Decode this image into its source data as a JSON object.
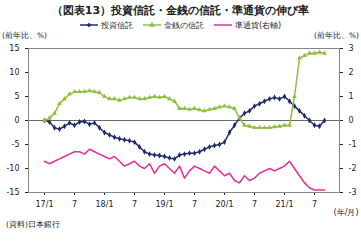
{
  "chart_data": {
    "type": "line",
    "title": "（図表13）投資信託・金銭の信託・準通貨の伸び率",
    "y_label": "(前年比、%)",
    "y2_label": "(前年比、%)",
    "x_label": "(年/月)",
    "source": "(資料)日本銀行",
    "categories": [
      "17/1",
      null,
      null,
      null,
      null,
      null,
      "7",
      null,
      null,
      null,
      null,
      null,
      "18/1",
      null,
      null,
      null,
      null,
      null,
      "7",
      null,
      null,
      null,
      null,
      null,
      "19/1",
      null,
      null,
      null,
      null,
      null,
      "7",
      null,
      null,
      null,
      null,
      null,
      "20/1",
      null,
      null,
      null,
      null,
      null,
      "7",
      null,
      null,
      null,
      null,
      null,
      "21/1",
      null,
      null,
      null,
      null,
      null,
      "7",
      null,
      null
    ],
    "ylim": [
      -15,
      15
    ],
    "yticks": [
      -15,
      -10,
      -5,
      0,
      5,
      10,
      15
    ],
    "y2lim": [
      -3,
      3
    ],
    "y2ticks": [
      -3,
      -2,
      -1,
      0,
      1,
      2,
      3
    ],
    "grid": false,
    "legend": "top",
    "series": [
      {
        "name": "投資信託",
        "color": "#1f2d6b",
        "marker": "diamond",
        "line_style": "solid",
        "values": [
          0,
          -0.3,
          -1.5,
          -1.8,
          -1.2,
          -0.5,
          -1.0,
          -0.3,
          -0.2,
          -0.8,
          -0.5,
          -1.5,
          -2.5,
          -3.0,
          -3.5,
          -3.8,
          -4.0,
          -4.2,
          -4.5,
          -5.5,
          -6.5,
          -7.0,
          -7.2,
          -7.3,
          -7.5,
          -7.8,
          -8.0,
          -7.2,
          -7.0,
          -6.8,
          -6.8,
          -6.5,
          -6.0,
          -5.5,
          -5.2,
          -5.0,
          -4.5,
          -2.5,
          -1.0,
          0.5,
          1.5,
          2.0,
          3.0,
          3.5,
          4.0,
          4.5,
          4.8,
          4.5,
          5.0,
          4.0,
          3.0,
          2.0,
          1.0,
          0.0,
          -1.0,
          -1.2,
          0.0
        ]
      },
      {
        "name": "金銭の信託",
        "color": "#8fbf3f",
        "marker": "triangle",
        "line_style": "solid",
        "values": [
          0,
          0.5,
          1.5,
          3.5,
          4.5,
          5.5,
          6.0,
          6.0,
          6.0,
          6.2,
          6.0,
          5.8,
          5.0,
          4.5,
          4.5,
          4.2,
          4.5,
          4.8,
          4.8,
          4.5,
          4.5,
          4.8,
          5.0,
          4.8,
          5.0,
          4.5,
          4.0,
          2.5,
          2.5,
          2.3,
          2.5,
          2.2,
          2.0,
          2.3,
          2.5,
          2.8,
          3.0,
          2.8,
          2.5,
          0.5,
          -1.0,
          -1.2,
          -1.5,
          -1.5,
          -1.5,
          -1.5,
          -1.3,
          -1.2,
          -1.0,
          -1.0,
          5.0,
          13.0,
          13.5,
          14.0,
          14.0,
          14.2,
          14.0
        ]
      },
      {
        "name": "準通貨(右軸)",
        "color": "#e0309a",
        "marker": "none",
        "line_style": "solid",
        "axis": "y2",
        "values": [
          -1.7,
          -1.8,
          -1.7,
          -1.6,
          -1.5,
          -1.4,
          -1.3,
          -1.3,
          -1.4,
          -1.2,
          -1.3,
          -1.4,
          -1.5,
          -1.6,
          -1.5,
          -1.7,
          -1.9,
          -1.8,
          -1.7,
          -1.9,
          -2.0,
          -1.8,
          -2.2,
          -1.9,
          -1.8,
          -2.0,
          -2.2,
          -1.9,
          -2.4,
          -2.1,
          -1.9,
          -2.0,
          -2.1,
          -2.2,
          -1.9,
          -2.1,
          -2.3,
          -2.2,
          -2.5,
          -2.6,
          -2.3,
          -2.5,
          -2.4,
          -2.2,
          -2.1,
          -2.0,
          -2.1,
          -2.0,
          -1.9,
          -1.7,
          -2.0,
          -2.3,
          -2.6,
          -2.8,
          -2.9,
          -2.9,
          -2.9
        ]
      }
    ]
  }
}
